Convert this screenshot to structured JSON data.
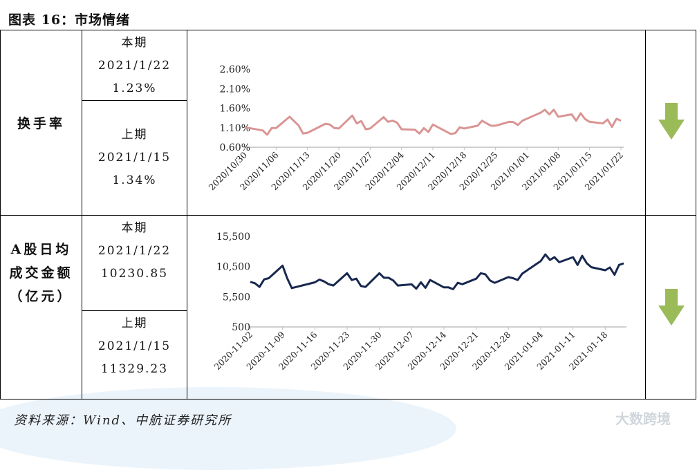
{
  "title": "图表 16：市场情绪",
  "rows": [
    {
      "label": "换手率",
      "current": {
        "tag": "本期",
        "date": "2021/1/22",
        "value": "1.23%"
      },
      "previous": {
        "tag": "上期",
        "date": "2021/1/15",
        "value": "1.34%"
      },
      "trend_icon": "arrow-down-icon"
    },
    {
      "label_lines": [
        "A股日均",
        "成交金额",
        "（亿元）"
      ],
      "current": {
        "tag": "本期",
        "date": "2021/1/22",
        "value": "10230.85"
      },
      "previous": {
        "tag": "上期",
        "date": "2021/1/15",
        "value": "11329.23"
      },
      "trend_icon": "arrow-down-icon"
    }
  ],
  "arrow_color": "#9bbb59",
  "source": "资料来源：Wind、中航证券研究所",
  "watermark": "大数跨境",
  "chart_data": [
    {
      "type": "line",
      "color": "#d99594",
      "ylim": [
        0.6,
        2.6
      ],
      "y_ticks": [
        "0.60%",
        "1.10%",
        "1.60%",
        "2.10%",
        "2.60%"
      ],
      "y_tick_values": [
        0.6,
        1.1,
        1.6,
        2.1,
        2.6
      ],
      "x_ticks": [
        "2020/10/30",
        "2020/11/06",
        "2020/11/13",
        "2020/11/20",
        "2020/11/27",
        "2020/12/04",
        "2020/12/11",
        "2020/12/18",
        "2020/12/25",
        "2021/01/01",
        "2021/01/08",
        "2021/01/15",
        "2021/01/22"
      ],
      "x_range": [
        "2020-10-30",
        "2021-01-22"
      ],
      "points": [
        [
          "2020-10-30",
          1.11
        ],
        [
          "2020-11-03",
          1.03
        ],
        [
          "2020-11-04",
          0.92
        ],
        [
          "2020-11-05",
          1.09
        ],
        [
          "2020-11-06",
          1.09
        ],
        [
          "2020-11-09",
          1.38
        ],
        [
          "2020-11-11",
          1.16
        ],
        [
          "2020-11-12",
          0.95
        ],
        [
          "2020-11-13",
          0.97
        ],
        [
          "2020-11-17",
          1.2
        ],
        [
          "2020-11-18",
          1.18
        ],
        [
          "2020-11-19",
          1.09
        ],
        [
          "2020-11-20",
          1.08
        ],
        [
          "2020-11-23",
          1.41
        ],
        [
          "2020-11-24",
          1.21
        ],
        [
          "2020-11-25",
          1.27
        ],
        [
          "2020-11-26",
          1.06
        ],
        [
          "2020-11-27",
          1.08
        ],
        [
          "2020-11-30",
          1.37
        ],
        [
          "2020-12-01",
          1.25
        ],
        [
          "2020-12-02",
          1.28
        ],
        [
          "2020-12-03",
          1.23
        ],
        [
          "2020-12-04",
          1.06
        ],
        [
          "2020-12-07",
          1.05
        ],
        [
          "2020-12-08",
          0.95
        ],
        [
          "2020-12-09",
          1.09
        ],
        [
          "2020-12-10",
          0.99
        ],
        [
          "2020-12-11",
          1.18
        ],
        [
          "2020-12-15",
          0.94
        ],
        [
          "2020-12-16",
          0.96
        ],
        [
          "2020-12-17",
          1.11
        ],
        [
          "2020-12-18",
          1.08
        ],
        [
          "2020-12-21",
          1.15
        ],
        [
          "2020-12-22",
          1.28
        ],
        [
          "2020-12-23",
          1.21
        ],
        [
          "2020-12-24",
          1.15
        ],
        [
          "2020-12-25",
          1.15
        ],
        [
          "2020-12-28",
          1.25
        ],
        [
          "2020-12-29",
          1.24
        ],
        [
          "2020-12-30",
          1.17
        ],
        [
          "2020-12-31",
          1.28
        ],
        [
          "2021-01-04",
          1.48
        ],
        [
          "2021-01-05",
          1.56
        ],
        [
          "2021-01-06",
          1.44
        ],
        [
          "2021-01-07",
          1.56
        ],
        [
          "2021-01-08",
          1.38
        ],
        [
          "2021-01-11",
          1.44
        ],
        [
          "2021-01-12",
          1.28
        ],
        [
          "2021-01-13",
          1.47
        ],
        [
          "2021-01-14",
          1.32
        ],
        [
          "2021-01-15",
          1.25
        ],
        [
          "2021-01-18",
          1.21
        ],
        [
          "2021-01-19",
          1.31
        ],
        [
          "2021-01-20",
          1.12
        ],
        [
          "2021-01-21",
          1.33
        ],
        [
          "2021-01-22",
          1.28
        ]
      ]
    },
    {
      "type": "line",
      "color": "#17284f",
      "ylim": [
        500,
        15500
      ],
      "y_ticks": [
        "500",
        "5,500",
        "10,500",
        "15,500"
      ],
      "y_tick_values": [
        500,
        5500,
        10500,
        15500
      ],
      "x_ticks": [
        "2020-11-02",
        "2020-11-09",
        "2020-11-16",
        "2020-11-23",
        "2020-11-30",
        "2020-12-07",
        "2020-12-14",
        "2020-12-21",
        "2020-12-28",
        "2021-01-04",
        "2021-01-11",
        "2021-01-18"
      ],
      "x_range": [
        "2020-11-02",
        "2021-01-22"
      ],
      "points": [
        [
          "2020-11-02",
          7960
        ],
        [
          "2020-11-03",
          7735
        ],
        [
          "2020-11-04",
          7130
        ],
        [
          "2020-11-05",
          8380
        ],
        [
          "2020-11-06",
          8570
        ],
        [
          "2020-11-09",
          10650
        ],
        [
          "2020-11-10",
          8570
        ],
        [
          "2020-11-11",
          6940
        ],
        [
          "2020-11-16",
          7890
        ],
        [
          "2020-11-17",
          8340
        ],
        [
          "2020-11-18",
          8040
        ],
        [
          "2020-11-19",
          7580
        ],
        [
          "2020-11-20",
          7360
        ],
        [
          "2020-11-23",
          9400
        ],
        [
          "2020-11-24",
          8270
        ],
        [
          "2020-11-25",
          8490
        ],
        [
          "2020-11-26",
          7280
        ],
        [
          "2020-11-27",
          7130
        ],
        [
          "2020-11-30",
          9400
        ],
        [
          "2020-12-01",
          8640
        ],
        [
          "2020-12-02",
          8640
        ],
        [
          "2020-12-03",
          8190
        ],
        [
          "2020-12-04",
          7360
        ],
        [
          "2020-12-07",
          7550
        ],
        [
          "2020-12-08",
          6830
        ],
        [
          "2020-12-09",
          7890
        ],
        [
          "2020-12-10",
          6980
        ],
        [
          "2020-12-11",
          8270
        ],
        [
          "2020-12-14",
          7050
        ],
        [
          "2020-12-15",
          7050
        ],
        [
          "2020-12-16",
          6750
        ],
        [
          "2020-12-17",
          7810
        ],
        [
          "2020-12-18",
          7580
        ],
        [
          "2020-12-21",
          8490
        ],
        [
          "2020-12-22",
          9400
        ],
        [
          "2020-12-23",
          9210
        ],
        [
          "2020-12-24",
          8190
        ],
        [
          "2020-12-25",
          7810
        ],
        [
          "2020-12-28",
          8760
        ],
        [
          "2020-12-29",
          8570
        ],
        [
          "2020-12-30",
          8270
        ],
        [
          "2020-12-31",
          9330
        ],
        [
          "2021-01-04",
          11410
        ],
        [
          "2021-01-05",
          12510
        ],
        [
          "2021-01-06",
          11600
        ],
        [
          "2021-01-07",
          12050
        ],
        [
          "2021-01-08",
          11220
        ],
        [
          "2021-01-11",
          12050
        ],
        [
          "2021-01-12",
          10770
        ],
        [
          "2021-01-13",
          12280
        ],
        [
          "2021-01-14",
          11030
        ],
        [
          "2021-01-15",
          10390
        ],
        [
          "2021-01-18",
          9890
        ],
        [
          "2021-01-19",
          10350
        ],
        [
          "2021-01-20",
          9140
        ],
        [
          "2021-01-21",
          10770
        ],
        [
          "2021-01-22",
          11030
        ]
      ]
    }
  ]
}
